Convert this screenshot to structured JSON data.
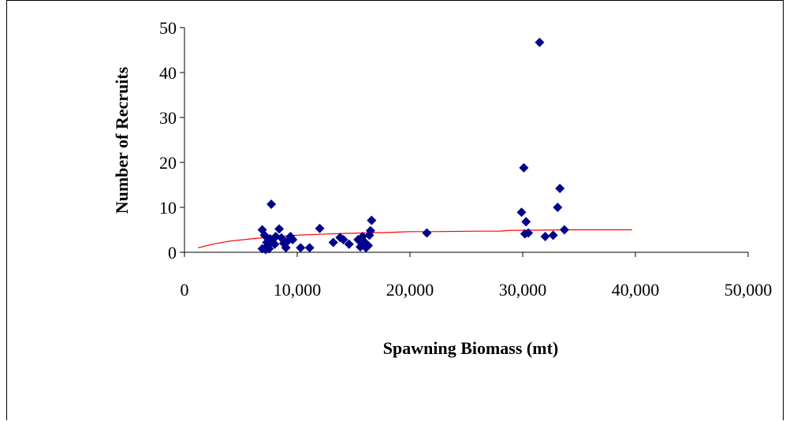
{
  "chart_data": {
    "type": "scatter",
    "xlabel": "Spawning Biomass (mt)",
    "ylabel": "Number of Recruits",
    "xlim": [
      0,
      50000
    ],
    "ylim": [
      0,
      50
    ],
    "x_ticks": [
      0,
      10000,
      20000,
      30000,
      40000,
      50000
    ],
    "x_tick_labels": [
      "0",
      "10,000",
      "20,000",
      "30,000",
      "40,000",
      "50,000"
    ],
    "y_ticks": [
      0,
      10,
      20,
      30,
      40,
      50
    ],
    "y_tick_labels": [
      "0",
      "10",
      "20",
      "30",
      "40",
      "50"
    ],
    "grid": false,
    "legend": "none",
    "series": [
      {
        "kind": "scatter",
        "color": "#00008B",
        "marker": "diamond",
        "points": [
          [
            6900,
            5.0
          ],
          [
            6900,
            0.8
          ],
          [
            7100,
            3.8
          ],
          [
            7200,
            0.6
          ],
          [
            7300,
            2.2
          ],
          [
            7400,
            1.5
          ],
          [
            7500,
            0.8
          ],
          [
            7600,
            3.0
          ],
          [
            7700,
            10.7
          ],
          [
            7800,
            2.8
          ],
          [
            8000,
            1.8
          ],
          [
            8100,
            3.5
          ],
          [
            8400,
            5.2
          ],
          [
            8600,
            3.2
          ],
          [
            8800,
            2.0
          ],
          [
            9000,
            1.0
          ],
          [
            9200,
            2.6
          ],
          [
            9400,
            3.5
          ],
          [
            9600,
            2.8
          ],
          [
            10300,
            1.0
          ],
          [
            11100,
            1.0
          ],
          [
            12000,
            5.3
          ],
          [
            13200,
            2.2
          ],
          [
            13800,
            3.3
          ],
          [
            14100,
            2.8
          ],
          [
            14600,
            1.8
          ],
          [
            15400,
            2.8
          ],
          [
            15600,
            1.2
          ],
          [
            15800,
            3.5
          ],
          [
            16000,
            2.2
          ],
          [
            16100,
            1.0
          ],
          [
            16300,
            1.5
          ],
          [
            16400,
            3.8
          ],
          [
            16500,
            4.8
          ],
          [
            16600,
            7.1
          ],
          [
            21500,
            4.3
          ],
          [
            29900,
            8.9
          ],
          [
            30100,
            18.8
          ],
          [
            30200,
            4.1
          ],
          [
            30300,
            6.8
          ],
          [
            30500,
            4.3
          ],
          [
            31500,
            46.7
          ],
          [
            32000,
            3.5
          ],
          [
            32700,
            3.8
          ],
          [
            33100,
            10.0
          ],
          [
            33300,
            14.2
          ],
          [
            33700,
            5.0
          ]
        ]
      },
      {
        "kind": "line",
        "color": "#FF0000",
        "points": [
          [
            1200,
            1.0
          ],
          [
            2500,
            1.8
          ],
          [
            4000,
            2.5
          ],
          [
            6000,
            3.0
          ],
          [
            8000,
            3.5
          ],
          [
            10000,
            3.8
          ],
          [
            12000,
            4.0
          ],
          [
            14000,
            4.2
          ],
          [
            16000,
            4.3
          ],
          [
            18000,
            4.4
          ],
          [
            20000,
            4.6
          ],
          [
            22000,
            4.6
          ],
          [
            26000,
            4.7
          ],
          [
            28000,
            4.7
          ],
          [
            29000,
            4.9
          ],
          [
            30000,
            4.9
          ],
          [
            34000,
            5.0
          ],
          [
            39700,
            5.0
          ]
        ]
      }
    ]
  }
}
